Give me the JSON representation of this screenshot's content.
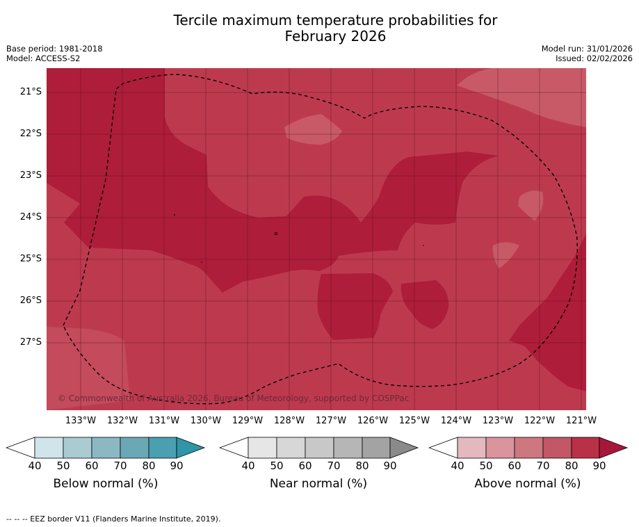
{
  "title_line1": "Tercile maximum temperature probabilities for",
  "title_line2": "February 2026",
  "meta_left": {
    "base_period": "Base period: 1981-2018",
    "model": "Model: ACCESS-S2"
  },
  "meta_right": {
    "model_run": "Model run: 31/01/2026",
    "issued": "Issued: 02/02/2026"
  },
  "map": {
    "copyright": "© Commonwealth of Australia 2026, Bureau of Meteorology, supported by COSPPac",
    "lat_ticks": [
      "21°S",
      "22°S",
      "23°S",
      "24°S",
      "25°S",
      "26°S",
      "27°S"
    ],
    "lon_ticks": [
      "133°W",
      "132°W",
      "131°W",
      "130°W",
      "129°W",
      "128°W",
      "127°W",
      "126°W",
      "125°W",
      "124°W",
      "123°W",
      "122°W",
      "121°W"
    ],
    "colors": {
      "above_70_80": "#bd3a4e",
      "above_80_90": "#ae1d39",
      "above_60_70": "#c85a68"
    }
  },
  "colorbars": [
    {
      "label": "Below normal (%)",
      "ticks": [
        "40",
        "50",
        "60",
        "70",
        "80",
        "90"
      ],
      "colors": [
        "#cfe5ea",
        "#a9cbd1",
        "#8cb8c3",
        "#6ba8b6",
        "#4a9fb0",
        "#2f95a8"
      ]
    },
    {
      "label": "Near normal (%)",
      "ticks": [
        "40",
        "50",
        "60",
        "70",
        "80",
        "90"
      ],
      "colors": [
        "#e6e6e6",
        "#d7d7d7",
        "#c8c8c8",
        "#b6b6b6",
        "#a3a3a3",
        "#8a8a8a"
      ]
    },
    {
      "label": "Above normal (%)",
      "ticks": [
        "40",
        "50",
        "60",
        "70",
        "80",
        "90"
      ],
      "colors": [
        "#e4b8bf",
        "#d9949d",
        "#cd7780",
        "#c35766",
        "#b93147",
        "#a8163a"
      ]
    }
  ],
  "footnote": "-- -- -- EEZ border V11 (Flanders Marine Institute, 2019)."
}
